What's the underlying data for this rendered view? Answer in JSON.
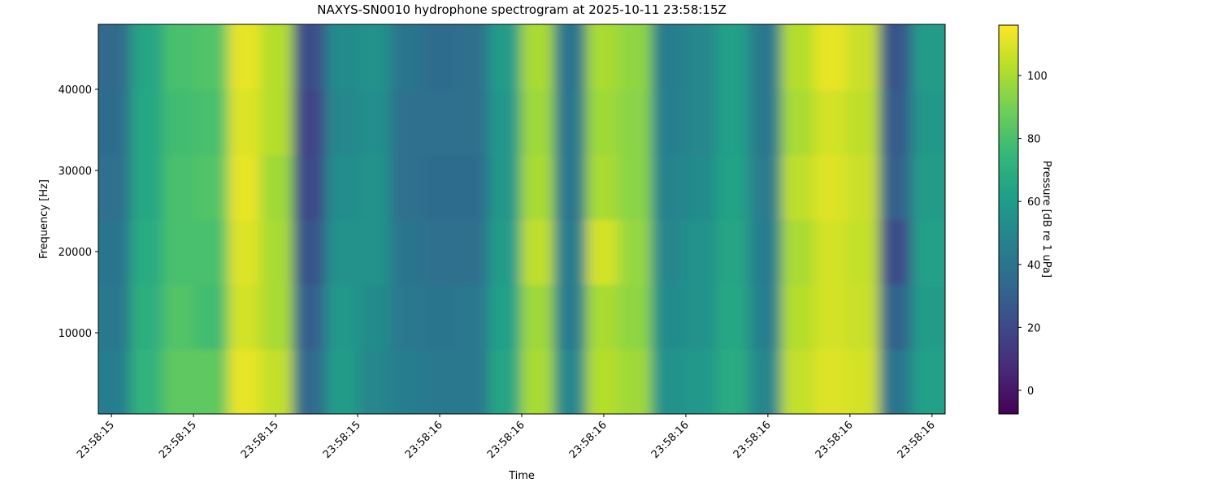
{
  "chart_data": {
    "type": "heatmap",
    "title": "NAXYS-SN0010 hydrophone spectrogram at 2025-10-11 23:58:15Z",
    "xlabel": "Time",
    "ylabel": "Frequency [Hz]",
    "colorbar_label": "Pressure [dB re 1 uPa]",
    "colormap": "viridis",
    "x": [
      15.604,
      15.644,
      15.683,
      15.723,
      15.763,
      15.802,
      15.842,
      15.882,
      15.921,
      15.961,
      16.001,
      16.041,
      16.08,
      16.12,
      16.16,
      16.199,
      16.239,
      16.279,
      16.318,
      16.358,
      16.398,
      16.437,
      16.477,
      16.517,
      16.556,
      16.596
    ],
    "y": [
      4000,
      12000,
      20000,
      28000,
      36000,
      44000
    ],
    "z": [
      [
        45,
        72,
        85,
        85,
        112,
        105,
        35,
        60,
        50,
        45,
        42,
        42,
        65,
        100,
        50,
        102,
        98,
        55,
        58,
        68,
        50,
        105,
        110,
        108,
        40,
        62
      ],
      [
        42,
        70,
        82,
        78,
        108,
        100,
        30,
        58,
        52,
        42,
        40,
        42,
        62,
        98,
        45,
        100,
        95,
        52,
        55,
        66,
        46,
        102,
        108,
        106,
        32,
        60
      ],
      [
        40,
        68,
        80,
        80,
        110,
        100,
        25,
        55,
        55,
        40,
        38,
        38,
        60,
        104,
        45,
        108,
        96,
        50,
        55,
        65,
        45,
        100,
        108,
        105,
        22,
        62
      ],
      [
        38,
        66,
        80,
        82,
        112,
        98,
        20,
        53,
        55,
        38,
        36,
        36,
        58,
        100,
        42,
        100,
        94,
        48,
        52,
        64,
        44,
        104,
        110,
        106,
        30,
        60
      ],
      [
        36,
        66,
        78,
        80,
        110,
        102,
        18,
        50,
        54,
        38,
        38,
        38,
        58,
        98,
        42,
        98,
        94,
        46,
        50,
        62,
        42,
        100,
        108,
        104,
        28,
        58
      ],
      [
        35,
        65,
        80,
        82,
        112,
        102,
        22,
        52,
        55,
        40,
        36,
        38,
        60,
        100,
        40,
        100,
        95,
        45,
        50,
        62,
        42,
        102,
        112,
        106,
        25,
        60
      ]
    ],
    "xlim": [
      15.584,
      16.616
    ],
    "xticks": [
      {
        "value": 15.6,
        "label": "23:58:15"
      },
      {
        "value": 15.7,
        "label": "23:58:15"
      },
      {
        "value": 15.8,
        "label": "23:58:15"
      },
      {
        "value": 15.9,
        "label": "23:58:15"
      },
      {
        "value": 16.0,
        "label": "23:58:16"
      },
      {
        "value": 16.1,
        "label": "23:58:16"
      },
      {
        "value": 16.2,
        "label": "23:58:16"
      },
      {
        "value": 16.3,
        "label": "23:58:16"
      },
      {
        "value": 16.4,
        "label": "23:58:16"
      },
      {
        "value": 16.5,
        "label": "23:58:16"
      },
      {
        "value": 16.6,
        "label": "23:58:16"
      }
    ],
    "ylim": [
      0,
      48000
    ],
    "yticks": [
      10000,
      20000,
      30000,
      40000
    ],
    "clim": [
      -7.5,
      116
    ],
    "cticks": [
      0,
      20,
      40,
      60,
      80,
      100
    ]
  }
}
